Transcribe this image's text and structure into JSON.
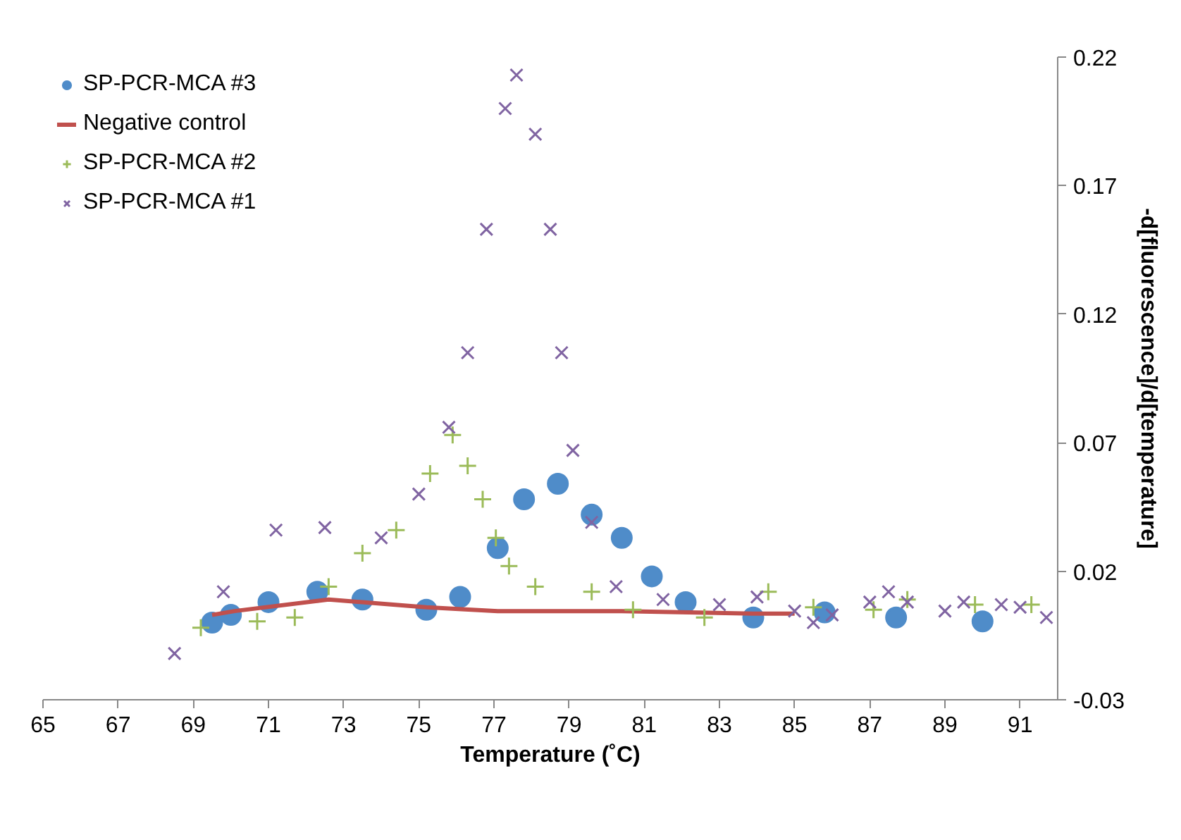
{
  "chart_data": {
    "type": "scatter",
    "xlabel": "Temperature (˚C)",
    "ylabel": "-d[fluorescence]/d[temperature]",
    "xlim": [
      65,
      92
    ],
    "xticks": [
      65,
      67,
      69,
      71,
      73,
      75,
      77,
      79,
      81,
      83,
      85,
      87,
      89,
      91
    ],
    "ylim": [
      -0.03,
      0.22
    ],
    "yticks": [
      -0.03,
      0.02,
      0.07,
      0.12,
      0.17,
      0.22
    ],
    "grid": false,
    "legend": "top left",
    "series": [
      {
        "name": "SP-PCR-MCA #3",
        "marker": "circle",
        "color": "#4f8cc9",
        "x": [
          69.5,
          70.0,
          71.0,
          72.3,
          73.5,
          75.2,
          76.1,
          77.1,
          77.8,
          78.7,
          79.6,
          80.4,
          81.2,
          82.1,
          83.9,
          85.8,
          87.7,
          90.0
        ],
        "values": [
          0.0,
          0.003,
          0.008,
          0.012,
          0.009,
          0.005,
          0.01,
          0.029,
          0.048,
          0.054,
          0.042,
          0.033,
          0.018,
          0.008,
          0.002,
          0.004,
          0.002,
          0.0005
        ]
      },
      {
        "name": "Negative control",
        "type": "line",
        "color": "#c0504d",
        "x": [
          69.5,
          70.1,
          72.6,
          75.2,
          77.1,
          80.4,
          83.9,
          85.0
        ],
        "values": [
          0.003,
          0.0045,
          0.009,
          0.006,
          0.0045,
          0.0045,
          0.0035,
          0.0035
        ]
      },
      {
        "name": "SP-PCR-MCA #2",
        "marker": "cross",
        "color": "#9bbb59",
        "x": [
          69.2,
          70.7,
          71.7,
          72.6,
          73.5,
          74.4,
          75.3,
          75.9,
          76.3,
          76.7,
          77.05,
          77.4,
          78.1,
          79.6,
          80.7,
          82.6,
          84.3,
          85.5,
          87.1,
          88.0,
          89.8,
          91.3
        ],
        "values": [
          -0.002,
          0.0005,
          0.002,
          0.014,
          0.027,
          0.036,
          0.058,
          0.073,
          0.061,
          0.048,
          0.033,
          0.022,
          0.014,
          0.012,
          0.005,
          0.002,
          0.012,
          0.006,
          0.005,
          0.009,
          0.007,
          0.007
        ]
      },
      {
        "name": "SP-PCR-MCA #1",
        "marker": "x",
        "color": "#8064a2",
        "x": [
          68.5,
          69.8,
          71.2,
          72.5,
          74.0,
          75.0,
          75.8,
          76.3,
          76.8,
          77.3,
          77.6,
          78.1,
          78.5,
          78.8,
          79.1,
          79.6,
          80.25,
          81.5,
          83.0,
          84.0,
          85.0,
          85.5,
          86.0,
          87.0,
          87.5,
          88.0,
          89.0,
          89.5,
          90.5,
          91.0,
          91.7
        ],
        "values": [
          -0.012,
          0.012,
          0.036,
          0.037,
          0.033,
          0.05,
          0.076,
          0.105,
          0.153,
          0.2,
          0.213,
          0.19,
          0.153,
          0.105,
          0.067,
          0.039,
          0.014,
          0.009,
          0.007,
          0.01,
          0.0045,
          0.0,
          0.003,
          0.008,
          0.012,
          0.008,
          0.0045,
          0.008,
          0.007,
          0.006,
          0.002
        ]
      }
    ]
  }
}
